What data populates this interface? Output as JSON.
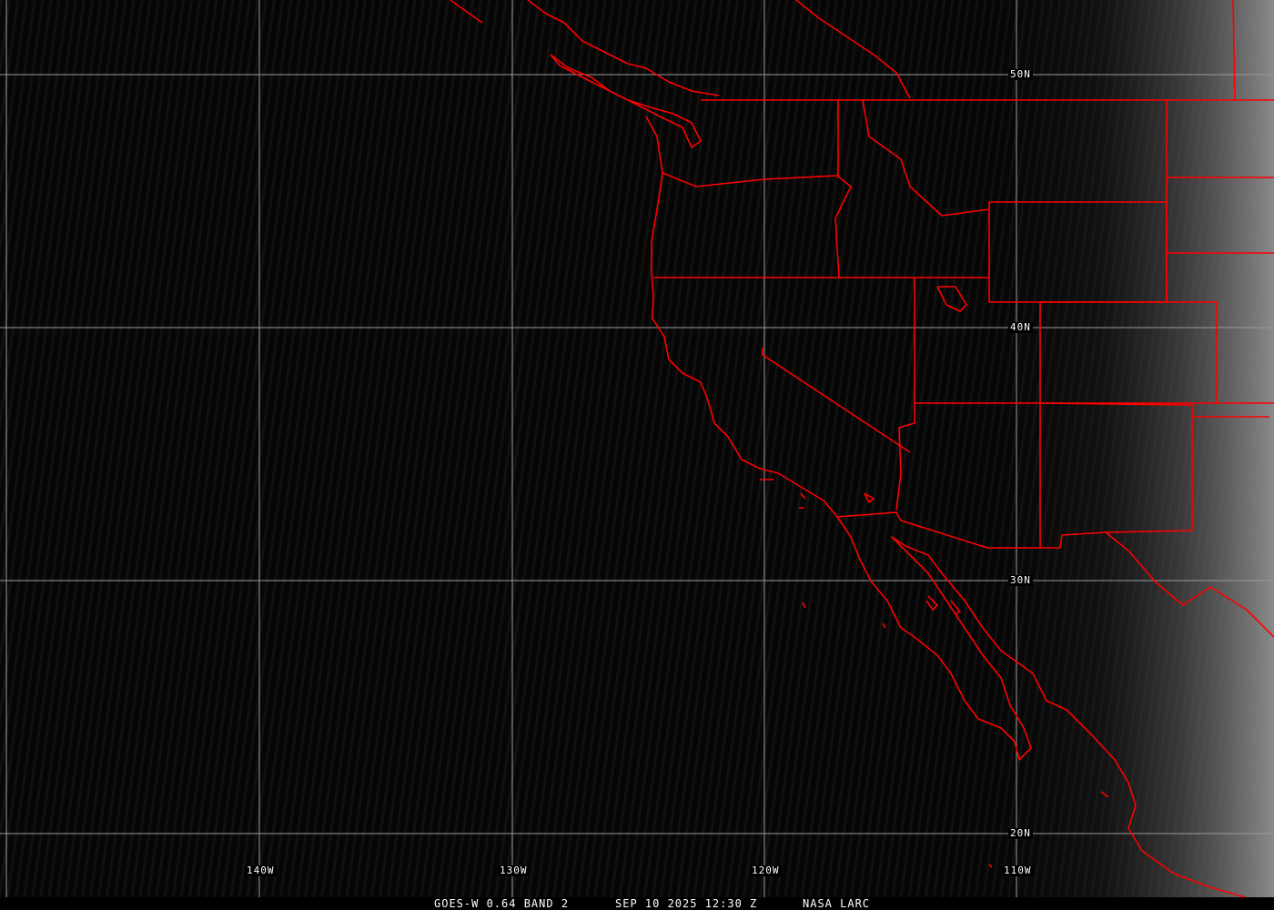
{
  "caption": {
    "satellite_band": "GOES-W 0.64 BAND 2",
    "datetime": "SEP 10 2025 12:30 Z",
    "credit": "NASA LARC"
  },
  "grid": {
    "latitude_labels": [
      "50N",
      "40N",
      "30N",
      "20N"
    ],
    "longitude_labels": [
      "140W",
      "130W",
      "120W",
      "110W"
    ]
  },
  "colors": {
    "boundaries": "#ff0000",
    "gridlines": "#9a9a9a",
    "background": "#050505"
  }
}
